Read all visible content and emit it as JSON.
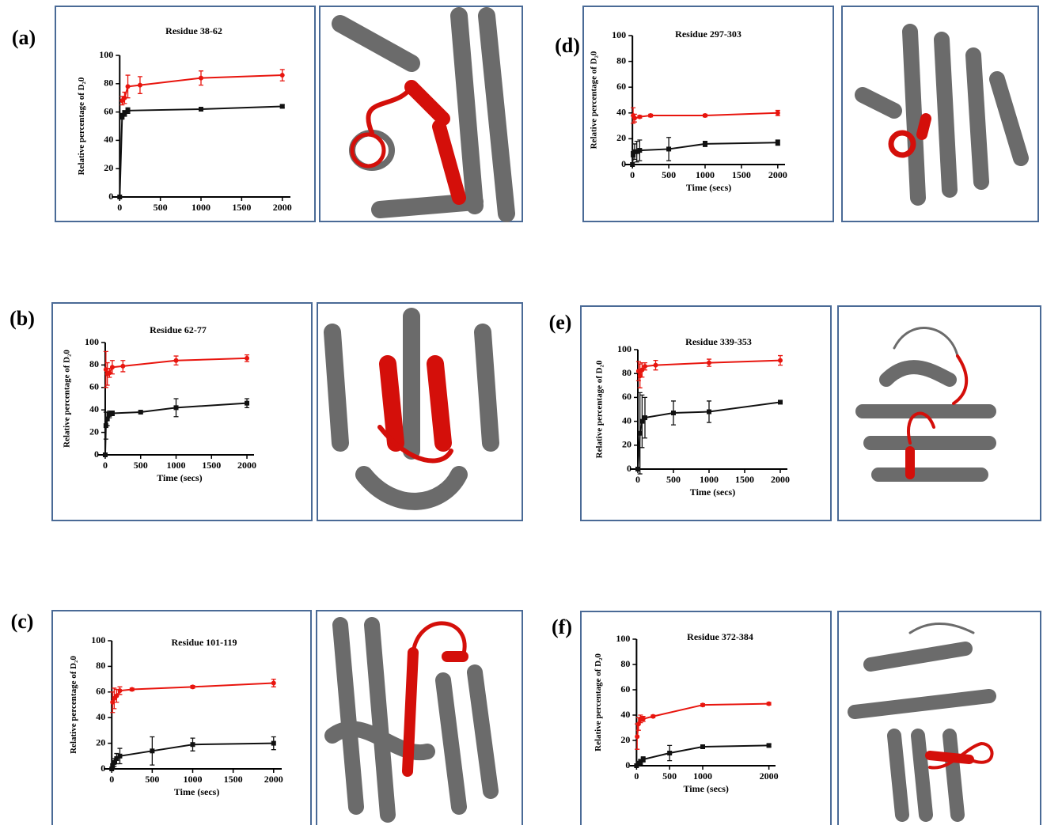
{
  "chart_data": [
    {
      "type": "line",
      "panel_label": "(a)",
      "title": "Residue 38-62",
      "ylabel": "Relative percentage of D₂0",
      "xlim": [
        -100,
        2100
      ],
      "xticks": [
        0,
        500,
        1000,
        1500,
        2000
      ],
      "ylim": [
        0,
        100
      ],
      "yticks": [
        0,
        20,
        40,
        60,
        80,
        100
      ],
      "series": [
        {
          "color": "#e8150e",
          "x": [
            30,
            60,
            100,
            250,
            1000,
            2000
          ],
          "values": [
            68,
            70,
            78,
            79,
            84,
            86
          ],
          "errors": [
            3,
            4,
            8,
            6,
            5,
            4
          ]
        },
        {
          "color": "#111111",
          "x": [
            0,
            30,
            60,
            100,
            1000,
            2000
          ],
          "values": [
            0,
            57,
            59,
            61,
            62,
            64
          ],
          "errors": [
            0,
            2,
            2,
            2,
            1,
            1
          ]
        }
      ]
    },
    {
      "type": "line",
      "panel_label": "(b)",
      "title": "Residue 62-77",
      "ylabel": "Relative percentage of D₂0",
      "xlabel": "Time (secs)",
      "xlim": [
        -100,
        2100
      ],
      "xticks": [
        0,
        500,
        1000,
        1500,
        2000
      ],
      "ylim": [
        0,
        100
      ],
      "yticks": [
        0,
        20,
        40,
        60,
        80,
        100
      ],
      "series": [
        {
          "color": "#e8150e",
          "x": [
            10,
            30,
            60,
            100,
            250,
            1000,
            2000
          ],
          "values": [
            76,
            72,
            73,
            78,
            79,
            84,
            86
          ],
          "errors": [
            16,
            10,
            4,
            6,
            5,
            4,
            3
          ]
        },
        {
          "color": "#111111",
          "x": [
            0,
            10,
            30,
            60,
            100,
            500,
            1000,
            2000
          ],
          "values": [
            0,
            26,
            32,
            36,
            37,
            38,
            42,
            46
          ],
          "errors": [
            0,
            12,
            6,
            3,
            2,
            1,
            8,
            4
          ]
        }
      ]
    },
    {
      "type": "line",
      "panel_label": "(c)",
      "title": "Residue 101-119",
      "ylabel": "Relative percentage of D₂0",
      "xlabel": "Time (secs)",
      "xlim": [
        -100,
        2100
      ],
      "xticks": [
        0,
        500,
        1000,
        1500,
        2000
      ],
      "ylim": [
        0,
        100
      ],
      "yticks": [
        0,
        20,
        40,
        60,
        80,
        100
      ],
      "series": [
        {
          "color": "#e8150e",
          "x": [
            10,
            30,
            60,
            100,
            250,
            1000,
            2000
          ],
          "values": [
            52,
            55,
            57,
            61,
            62,
            64,
            67
          ],
          "errors": [
            8,
            8,
            5,
            3,
            1,
            1,
            3
          ]
        },
        {
          "color": "#111111",
          "x": [
            0,
            10,
            30,
            60,
            100,
            500,
            1000,
            2000
          ],
          "values": [
            0,
            2,
            5,
            8,
            10,
            14,
            19,
            20
          ],
          "errors": [
            0,
            2,
            3,
            4,
            6,
            11,
            5,
            5
          ]
        }
      ]
    },
    {
      "type": "line",
      "panel_label": "(d)",
      "title": "Residue 297-303",
      "ylabel": "Relative percentage of D₂0",
      "xlabel": "Time (secs)",
      "xlim": [
        -100,
        2100
      ],
      "xticks": [
        0,
        500,
        1000,
        1500,
        2000
      ],
      "ylim": [
        0,
        100
      ],
      "yticks": [
        0,
        20,
        40,
        60,
        80,
        100
      ],
      "series": [
        {
          "color": "#e8150e",
          "x": [
            10,
            30,
            100,
            250,
            1000,
            2000
          ],
          "values": [
            38,
            36,
            37,
            38,
            38,
            40
          ],
          "errors": [
            6,
            3,
            1,
            1,
            1,
            2
          ]
        },
        {
          "color": "#111111",
          "x": [
            0,
            10,
            30,
            60,
            100,
            500,
            1000,
            2000
          ],
          "values": [
            0,
            8,
            10,
            10,
            11,
            12,
            16,
            17
          ],
          "errors": [
            0,
            2,
            6,
            8,
            8,
            9,
            2,
            2
          ]
        }
      ]
    },
    {
      "type": "line",
      "panel_label": "(e)",
      "title": "Residue 339-353",
      "ylabel": "Relative percentage of D₂0",
      "xlabel": "Time (secs)",
      "xlim": [
        -100,
        2100
      ],
      "xticks": [
        0,
        500,
        1000,
        1500,
        2000
      ],
      "ylim": [
        0,
        100
      ],
      "yticks": [
        0,
        20,
        40,
        60,
        80,
        100
      ],
      "series": [
        {
          "color": "#e8150e",
          "x": [
            10,
            30,
            60,
            100,
            250,
            1000,
            2000
          ],
          "values": [
            82,
            78,
            83,
            86,
            87,
            89,
            91
          ],
          "errors": [
            8,
            10,
            6,
            3,
            4,
            3,
            4
          ]
        },
        {
          "color": "#111111",
          "x": [
            0,
            30,
            60,
            100,
            500,
            1000,
            2000
          ],
          "values": [
            0,
            30,
            40,
            43,
            47,
            48,
            56
          ],
          "errors": [
            0,
            34,
            22,
            17,
            10,
            9,
            1
          ]
        }
      ]
    },
    {
      "type": "line",
      "panel_label": "(f)",
      "title": "Residue 372-384",
      "ylabel": "Relative percentage of D₂0",
      "xlabel": "Time (secs)",
      "xlim": [
        -100,
        2100
      ],
      "xticks": [
        0,
        500,
        1000,
        2000
      ],
      "ylim": [
        0,
        100
      ],
      "yticks": [
        0,
        20,
        40,
        60,
        80,
        100
      ],
      "series": [
        {
          "color": "#e8150e",
          "x": [
            10,
            30,
            60,
            100,
            250,
            1000,
            2000
          ],
          "values": [
            23,
            33,
            37,
            37,
            39,
            48,
            49
          ],
          "errors": [
            10,
            5,
            3,
            2,
            1,
            1,
            1
          ]
        },
        {
          "color": "#111111",
          "x": [
            0,
            30,
            60,
            100,
            500,
            1000,
            2000
          ],
          "values": [
            0,
            2,
            3,
            5,
            10,
            15,
            16
          ],
          "errors": [
            0,
            1,
            2,
            2,
            6,
            1,
            1
          ]
        }
      ]
    }
  ]
}
